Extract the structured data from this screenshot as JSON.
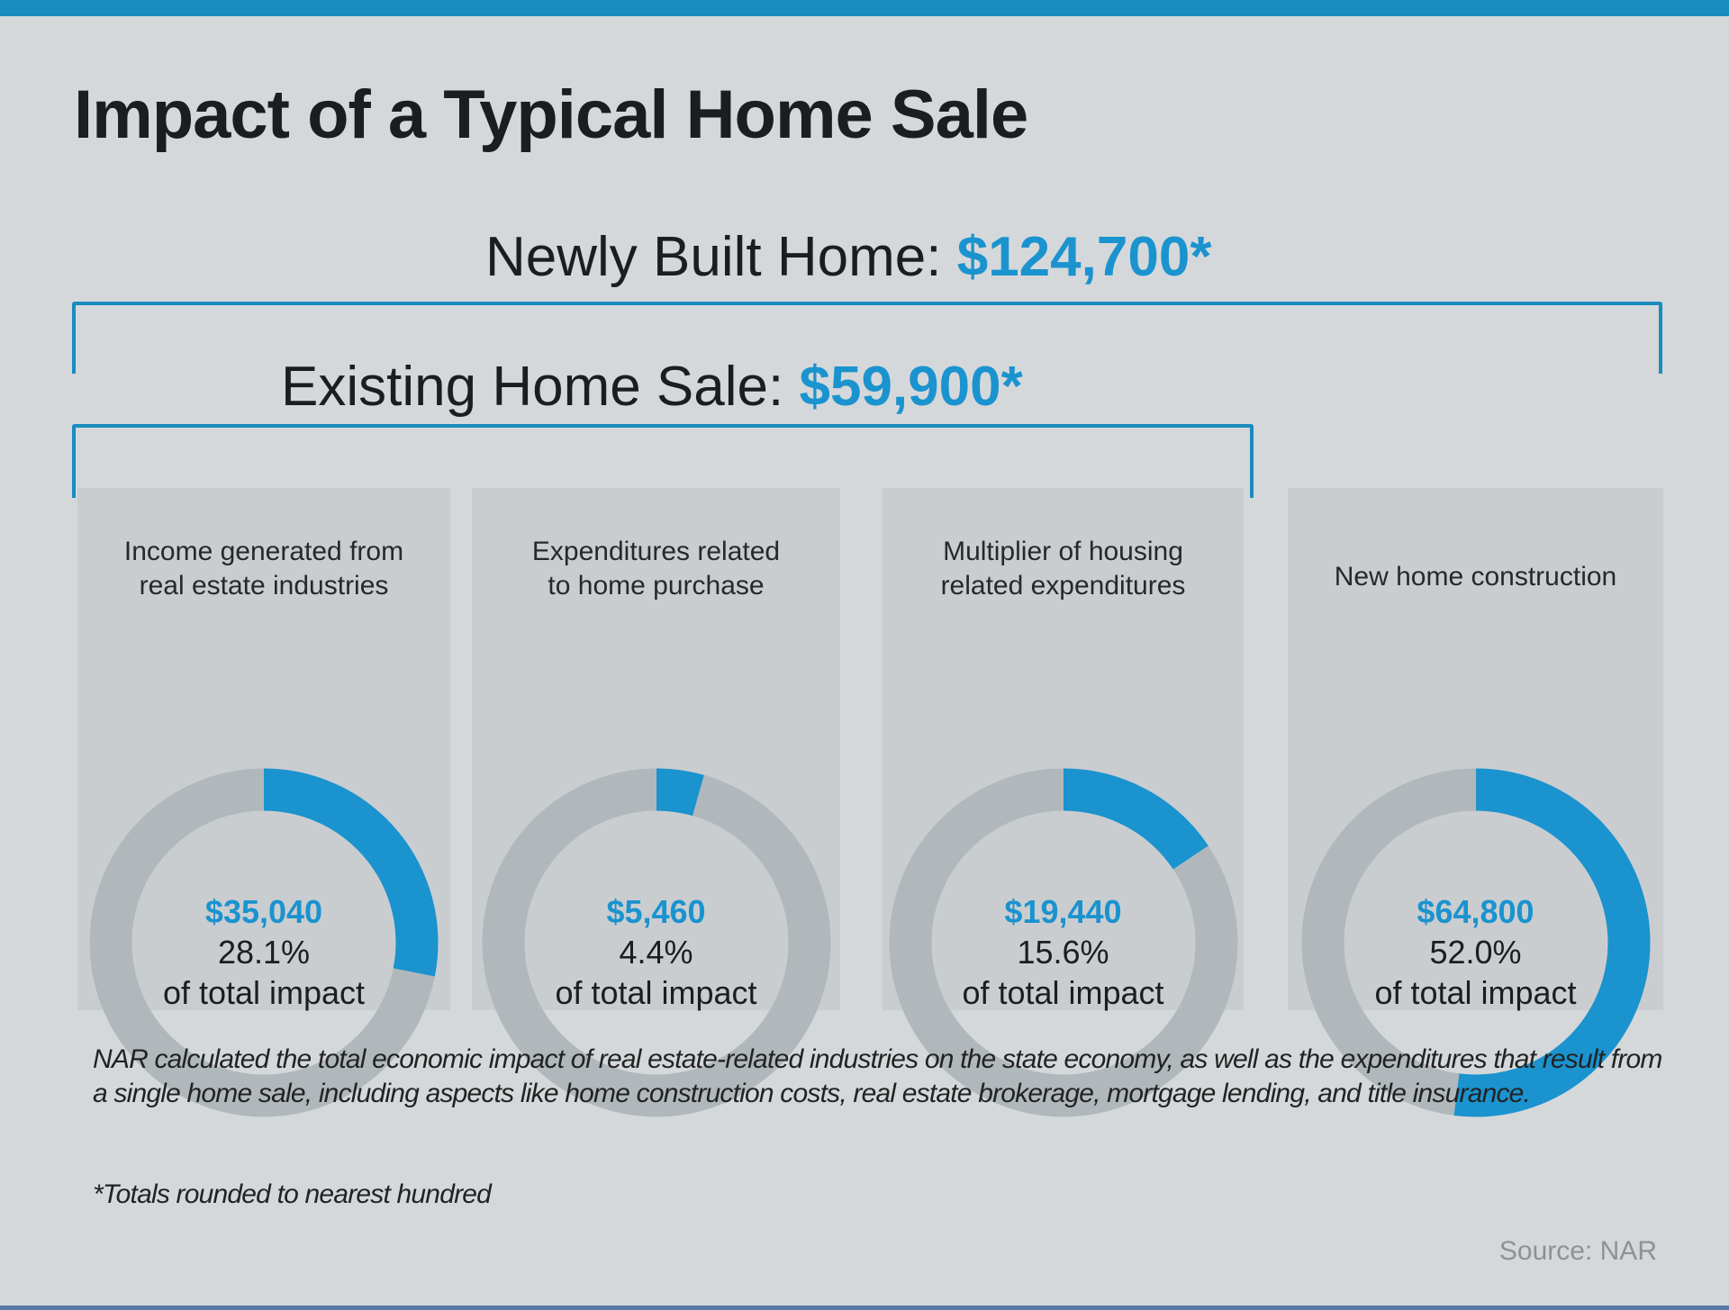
{
  "title": "Impact of a Typical Home Sale",
  "newly_built": {
    "label": "Newly Built Home:",
    "amount": "$124,700*"
  },
  "existing": {
    "label": "Existing Home Sale:",
    "amount": "$59,900*"
  },
  "colors": {
    "accent": "#1a93cf",
    "ring": "#b1b8bc",
    "panel": "#cacdd0",
    "background": "#d5d8da"
  },
  "chart_data": {
    "type": "pie",
    "variant": "donut",
    "title": "Impact of a Typical Home Sale",
    "series": [
      {
        "name": "Income generated from real estate industries",
        "title_lines": [
          "Income generated from",
          "real estate industries"
        ],
        "value_label": "$35,040",
        "value": 35040,
        "percent": 28.1,
        "percent_label": "28.1%",
        "caption": "of total impact",
        "group": "Existing Home Sale"
      },
      {
        "name": "Expenditures related to home purchase",
        "title_lines": [
          "Expenditures related",
          "to home purchase"
        ],
        "value_label": "$5,460",
        "value": 5460,
        "percent": 4.4,
        "percent_label": "4.4%",
        "caption": "of total impact",
        "group": "Existing Home Sale"
      },
      {
        "name": "Multiplier of housing related expenditures",
        "title_lines": [
          "Multiplier of housing",
          "related expenditures"
        ],
        "value_label": "$19,440",
        "value": 19440,
        "percent": 15.6,
        "percent_label": "15.6%",
        "caption": "of total impact",
        "group": "Existing Home Sale"
      },
      {
        "name": "New home construction",
        "title_lines": [
          "New home construction",
          ""
        ],
        "value_label": "$64,800",
        "value": 64800,
        "percent": 52.0,
        "percent_label": "52.0%",
        "caption": "of total impact",
        "group": "Newly Built Home"
      }
    ]
  },
  "footer": {
    "paragraph": "NAR calculated the total economic impact of real estate-related industries on the state economy, as well as the expenditures that result from a single home sale, including aspects like home construction costs, real estate brokerage, mortgage lending, and title insurance.",
    "note": "*Totals rounded to nearest hundred",
    "source": "Source: NAR"
  }
}
